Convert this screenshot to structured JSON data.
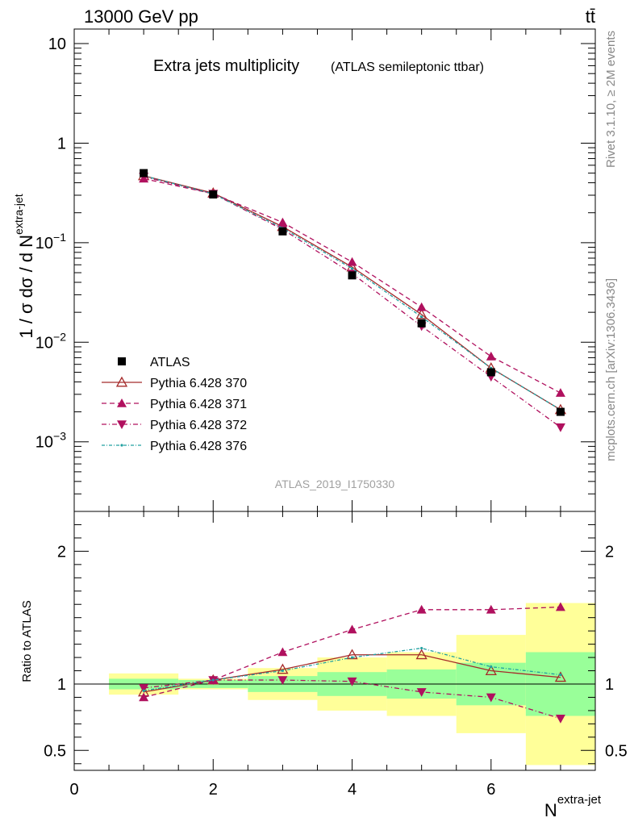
{
  "header": {
    "energy_label": "13000 GeV pp",
    "process_label": "tt̄"
  },
  "side_labels": {
    "rivet": "Rivet 3.1.10, ≥ 2M events",
    "mcplots": "mcplots.cern.ch [arXiv:1306.3436]"
  },
  "analysis_label": "ATLAS_2019_I1750330",
  "chart_data": {
    "type": "line",
    "title": "Extra jets multiplicity",
    "subtitle": "(ATLAS semileptonic ttbar)",
    "xlabel_main": "N",
    "xlabel_sup": "extra-jet",
    "ylabel_main": "1 / σ dσ / d N",
    "ylabel_sup": "extra-jet",
    "ratio_ylabel": "Ratio to ATLAS",
    "xlim": [
      0,
      7.5
    ],
    "ylim_main": [
      0.0002,
      14
    ],
    "ylim_ratio": [
      0.35,
      2.3
    ],
    "x_ticks": [
      "0",
      "2",
      "4",
      "6"
    ],
    "y_ticks_main": [
      {
        "v": 0.001,
        "base": "10",
        "exp": "−3"
      },
      {
        "v": 0.01,
        "base": "10",
        "exp": "−2"
      },
      {
        "v": 0.1,
        "base": "10",
        "exp": "−1"
      },
      {
        "v": 1,
        "base": "1",
        "exp": ""
      },
      {
        "v": 10,
        "base": "10",
        "exp": ""
      }
    ],
    "y_ticks_ratio": [
      "0.5",
      "1",
      "2"
    ],
    "x": [
      1,
      2,
      3,
      4,
      5,
      6,
      7
    ],
    "bins": [
      [
        0.5,
        1.5
      ],
      [
        1.5,
        2.5
      ],
      [
        2.5,
        3.5
      ],
      [
        3.5,
        4.5
      ],
      [
        4.5,
        5.5
      ],
      [
        5.5,
        6.5
      ],
      [
        6.5,
        7.5
      ]
    ],
    "data": {
      "name": "ATLAS",
      "values": [
        0.5,
        0.305,
        0.13,
        0.047,
        0.0155,
        0.005,
        0.002
      ],
      "band_inner": [
        [
          0.96,
          1.04
        ],
        [
          0.97,
          1.03
        ],
        [
          0.94,
          1.06
        ],
        [
          0.91,
          1.09
        ],
        [
          0.89,
          1.11
        ],
        [
          0.84,
          1.16
        ],
        [
          0.76,
          1.24
        ]
      ],
      "band_outer": [
        [
          0.92,
          1.08
        ],
        [
          0.96,
          1.04
        ],
        [
          0.88,
          1.12
        ],
        [
          0.8,
          1.2
        ],
        [
          0.76,
          1.24
        ],
        [
          0.63,
          1.37
        ],
        [
          0.39,
          1.61
        ]
      ]
    },
    "series": [
      {
        "name": "Pythia 6.428 370",
        "color": "#a52a2a",
        "marker": "triangle-open",
        "dash": "",
        "values": [
          0.47,
          0.315,
          0.145,
          0.057,
          0.019,
          0.0055,
          0.0021
        ],
        "ratio": [
          0.94,
          1.03,
          1.11,
          1.22,
          1.22,
          1.1,
          1.05
        ]
      },
      {
        "name": "Pythia 6.428 371",
        "color": "#b0105e",
        "marker": "triangle-up",
        "dash": "6,4",
        "values": [
          0.44,
          0.31,
          0.16,
          0.064,
          0.0225,
          0.0072,
          0.0031
        ],
        "ratio": [
          0.9,
          1.03,
          1.24,
          1.41,
          1.56,
          1.56,
          1.58
        ]
      },
      {
        "name": "Pythia 6.428 372",
        "color": "#b0105e",
        "marker": "triangle-down",
        "dash": "6,3,1,3",
        "values": [
          0.46,
          0.31,
          0.136,
          0.049,
          0.0145,
          0.0045,
          0.0014
        ],
        "ratio": [
          0.97,
          1.03,
          1.03,
          1.02,
          0.94,
          0.9,
          0.74
        ]
      },
      {
        "name": "Pythia 6.428 376",
        "color": "#20a0a0",
        "marker": "dot",
        "dash": "4,2,1,2",
        "values": [
          0.47,
          0.31,
          0.14,
          0.055,
          0.018,
          0.0055,
          0.0021
        ],
        "ratio": [
          0.95,
          1.03,
          1.1,
          1.2,
          1.27,
          1.13,
          1.07
        ]
      }
    ]
  }
}
